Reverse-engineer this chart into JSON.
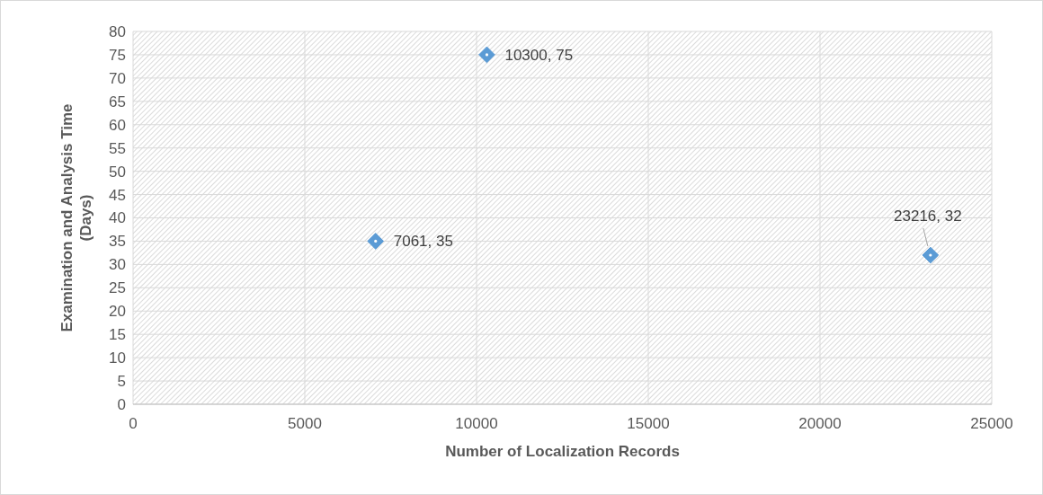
{
  "chart_data": {
    "type": "scatter",
    "xlabel": "Number of Localization Records",
    "ylabel": "Examination and Analysis Time (Days)",
    "x": [
      7061,
      10300,
      23216
    ],
    "values": [
      35,
      75,
      32
    ],
    "value_labels": [
      "7061, 35",
      "10300, 75",
      "23216, 32"
    ],
    "color": "#5b9bd5",
    "marker": "diamond",
    "xlim": [
      0,
      25000
    ],
    "xticks": [
      0,
      5000,
      10000,
      15000,
      20000,
      25000
    ],
    "ylim": [
      0,
      80
    ],
    "yticks": [
      0,
      5,
      10,
      15,
      20,
      25,
      30,
      35,
      40,
      45,
      50,
      55,
      60,
      65,
      70,
      75,
      80
    ],
    "grid": true
  }
}
